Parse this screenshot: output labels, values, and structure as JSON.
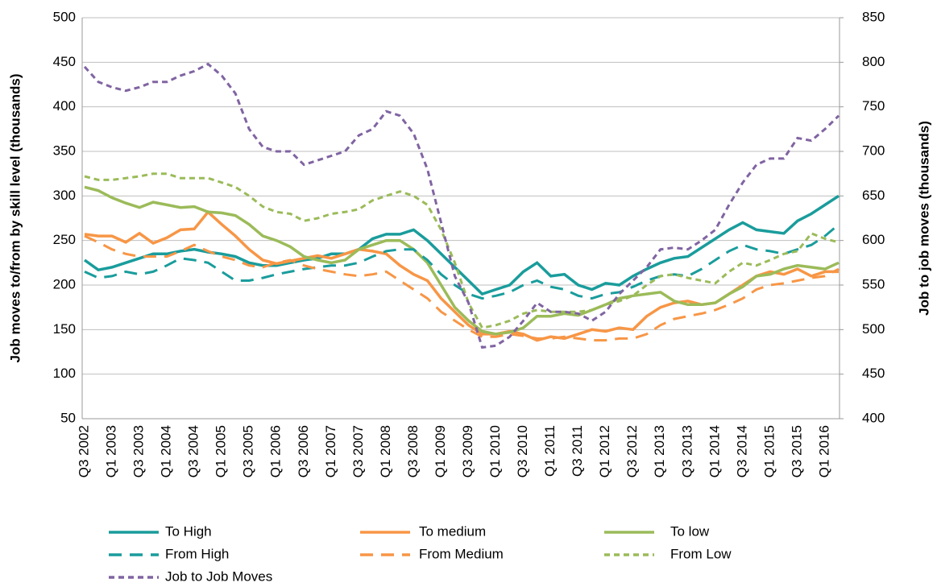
{
  "chart_data": {
    "type": "line",
    "categories": [
      "Q3 2002",
      null,
      "Q1 2003",
      null,
      "Q3 2003",
      null,
      "Q1 2004",
      null,
      "Q3 2004",
      null,
      "Q1 2005",
      null,
      "Q3 2005",
      null,
      "Q1 2006",
      null,
      "Q3 2006",
      null,
      "Q1 2007",
      null,
      "Q3 2007",
      null,
      "Q1 2008",
      null,
      "Q3 2008",
      null,
      "Q1 2009",
      null,
      "Q3 2009",
      null,
      "Q1 2010",
      null,
      "Q3 2010",
      null,
      "Q1 2011",
      null,
      "Q3 2011",
      null,
      "Q1 2012",
      null,
      "Q3 2012",
      null,
      "Q1 2013",
      null,
      "Q3 2013",
      null,
      "Q1 2014",
      null,
      "Q3 2014",
      null,
      "Q1 2015",
      null,
      "Q3 2015",
      null,
      "Q1 2016",
      null
    ],
    "y_label": "Job moves to/from by skill level (thousands)",
    "y2_label": "Job to job moves (thousands)",
    "ylim": [
      50,
      500
    ],
    "yticks": [
      50,
      100,
      150,
      200,
      250,
      300,
      350,
      400,
      450,
      500
    ],
    "y2lim": [
      400,
      850
    ],
    "y2ticks": [
      400,
      450,
      500,
      550,
      600,
      650,
      700,
      750,
      800,
      850
    ],
    "grid": true,
    "series": [
      {
        "name": "To High",
        "color": "#1a9c9c",
        "style": "solid",
        "values": [
          228,
          217,
          220,
          225,
          230,
          235,
          235,
          238,
          240,
          237,
          235,
          232,
          225,
          222,
          222,
          225,
          228,
          230,
          235,
          235,
          240,
          252,
          257,
          257,
          262,
          250,
          235,
          220,
          205,
          190,
          195,
          200,
          215,
          225,
          210,
          212,
          200,
          195,
          202,
          200,
          210,
          218,
          225,
          230,
          232,
          242,
          252,
          262,
          270,
          262,
          260,
          258,
          272,
          280,
          290,
          300
        ]
      },
      {
        "name": "To medium",
        "color": "#f79646",
        "style": "solid",
        "values": [
          257,
          255,
          255,
          248,
          258,
          247,
          253,
          262,
          263,
          282,
          268,
          255,
          240,
          228,
          224,
          227,
          230,
          233,
          230,
          235,
          240,
          238,
          235,
          222,
          212,
          205,
          185,
          170,
          155,
          145,
          145,
          148,
          145,
          138,
          142,
          140,
          145,
          150,
          148,
          152,
          150,
          165,
          175,
          180,
          182,
          178,
          180,
          190,
          200,
          210,
          215,
          212,
          218,
          210,
          215,
          215
        ]
      },
      {
        "name": "To low",
        "color": "#9bbb59",
        "style": "solid",
        "values": [
          310,
          306,
          298,
          292,
          287,
          293,
          290,
          287,
          288,
          282,
          281,
          278,
          268,
          255,
          250,
          243,
          232,
          228,
          225,
          228,
          240,
          245,
          250,
          250,
          240,
          225,
          200,
          175,
          160,
          148,
          145,
          147,
          152,
          165,
          165,
          168,
          166,
          172,
          178,
          185,
          188,
          190,
          192,
          182,
          178,
          178,
          180,
          190,
          198,
          210,
          212,
          218,
          222,
          220,
          218,
          225
        ]
      },
      {
        "name": "From High",
        "color": "#1a9c9c",
        "style": "dashed",
        "values": [
          215,
          208,
          210,
          215,
          212,
          215,
          222,
          230,
          228,
          225,
          215,
          205,
          205,
          208,
          212,
          215,
          218,
          220,
          222,
          222,
          225,
          232,
          238,
          240,
          240,
          228,
          212,
          200,
          190,
          185,
          188,
          192,
          200,
          205,
          198,
          195,
          188,
          185,
          190,
          192,
          198,
          205,
          210,
          212,
          210,
          218,
          228,
          238,
          245,
          240,
          238,
          235,
          240,
          245,
          255,
          268
        ]
      },
      {
        "name": "From Medium",
        "color": "#f79646",
        "style": "dashed",
        "values": [
          255,
          248,
          240,
          235,
          232,
          232,
          232,
          238,
          245,
          238,
          232,
          228,
          222,
          220,
          225,
          228,
          222,
          218,
          215,
          212,
          210,
          212,
          215,
          205,
          195,
          185,
          170,
          160,
          150,
          142,
          142,
          145,
          143,
          140,
          140,
          142,
          140,
          138,
          138,
          140,
          140,
          145,
          155,
          162,
          165,
          168,
          172,
          178,
          185,
          195,
          200,
          202,
          205,
          208,
          210,
          218
        ]
      },
      {
        "name": "From Low",
        "color": "#9bbb59",
        "style": "dotted",
        "values": [
          322,
          318,
          318,
          320,
          322,
          325,
          325,
          320,
          320,
          320,
          315,
          310,
          300,
          288,
          282,
          280,
          272,
          275,
          280,
          282,
          285,
          295,
          300,
          305,
          300,
          290,
          262,
          225,
          180,
          152,
          155,
          160,
          168,
          172,
          170,
          170,
          170,
          172,
          178,
          182,
          188,
          200,
          210,
          212,
          208,
          205,
          202,
          215,
          225,
          222,
          228,
          235,
          238,
          258,
          252,
          248
        ]
      },
      {
        "name": "Job to Job Moves",
        "color": "#8064a2",
        "style": "dotted",
        "axis": "y2",
        "values": [
          795,
          778,
          772,
          768,
          772,
          778,
          778,
          785,
          790,
          798,
          785,
          765,
          725,
          705,
          700,
          700,
          685,
          690,
          695,
          700,
          718,
          725,
          745,
          740,
          720,
          680,
          620,
          560,
          530,
          480,
          482,
          492,
          510,
          530,
          520,
          520,
          518,
          510,
          520,
          540,
          555,
          570,
          590,
          592,
          590,
          600,
          612,
          640,
          665,
          685,
          692,
          692,
          715,
          712,
          725,
          740
        ]
      }
    ]
  }
}
